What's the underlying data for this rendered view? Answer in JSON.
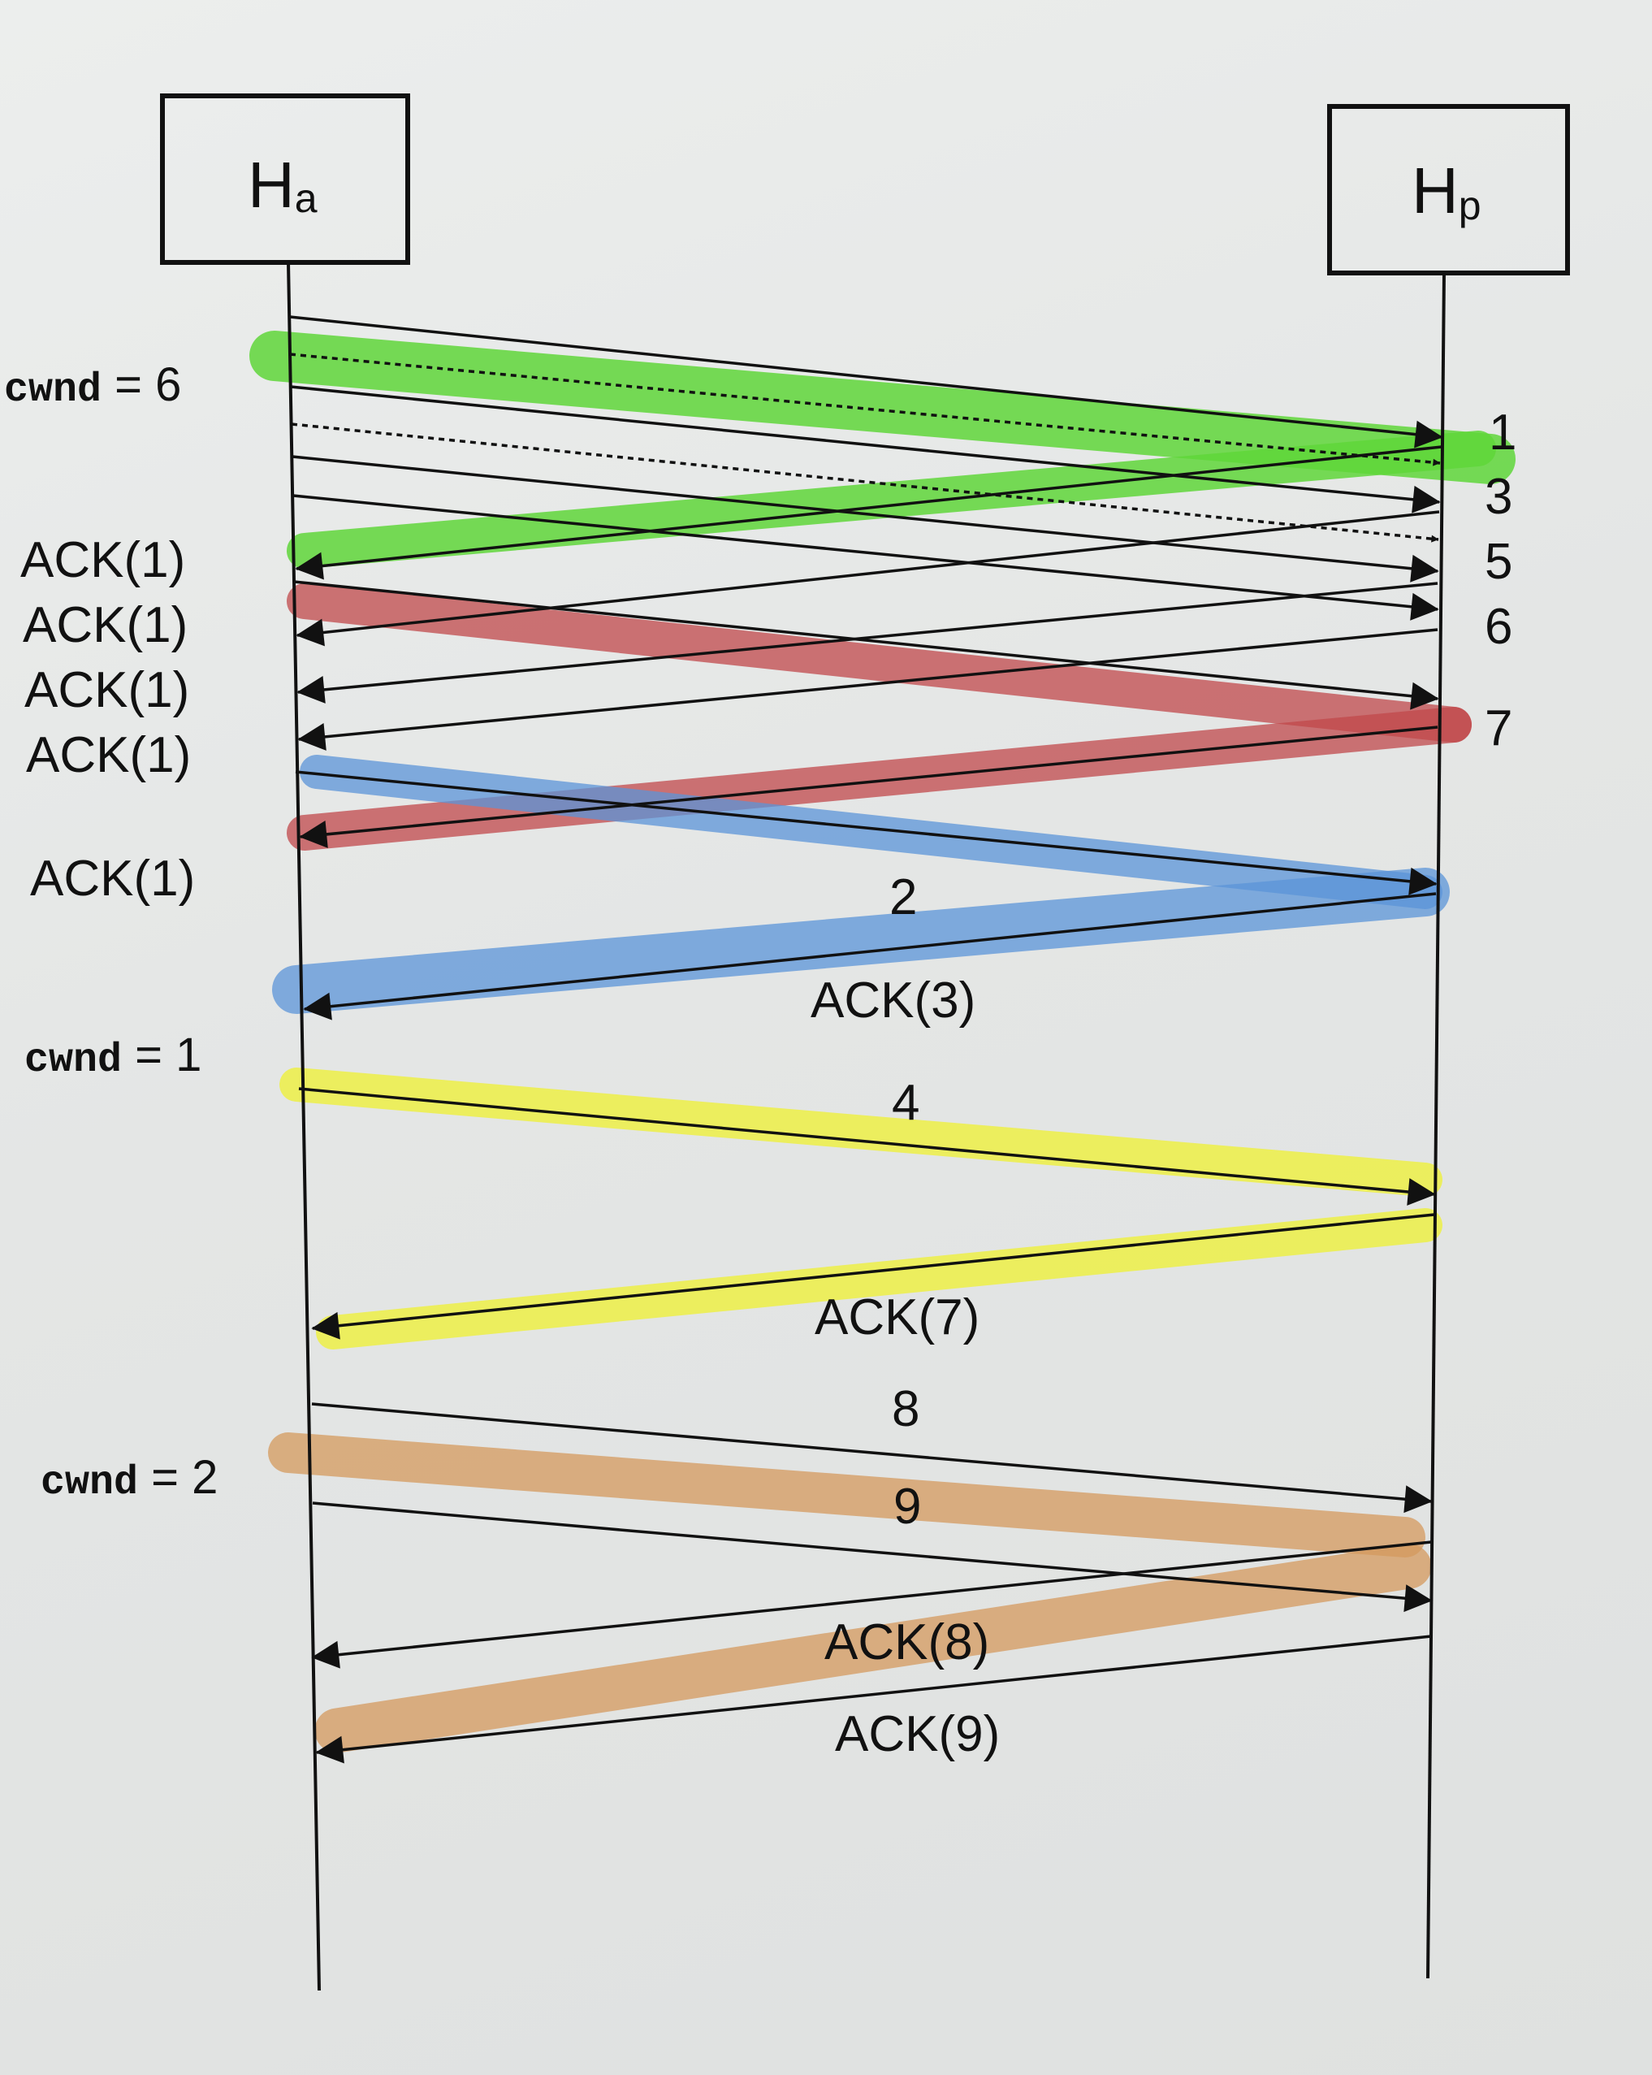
{
  "hosts": {
    "left": {
      "main": "H",
      "sub": "a"
    },
    "right": {
      "main": "H",
      "sub": "p"
    }
  },
  "cwnd_labels": [
    {
      "id": "cwnd-6",
      "mono": "cwnd",
      "rest": " = 6"
    },
    {
      "id": "cwnd-1",
      "mono": "cwnd",
      "rest": " = 1"
    },
    {
      "id": "cwnd-2",
      "mono": "cwnd",
      "rest": " = 2"
    }
  ],
  "segment_labels": [
    {
      "id": "seg-1",
      "text": "1"
    },
    {
      "id": "seg-3",
      "text": "3"
    },
    {
      "id": "seg-5",
      "text": "5"
    },
    {
      "id": "seg-6",
      "text": "6"
    },
    {
      "id": "seg-7",
      "text": "7"
    },
    {
      "id": "seg-2",
      "text": "2"
    },
    {
      "id": "seg-4",
      "text": "4"
    },
    {
      "id": "seg-8",
      "text": "8"
    },
    {
      "id": "seg-9",
      "text": "9"
    }
  ],
  "ack_labels": [
    {
      "id": "ack-1-a",
      "text": "ACK(1)"
    },
    {
      "id": "ack-1-b",
      "text": "ACK(1)"
    },
    {
      "id": "ack-1-c",
      "text": "ACK(1)"
    },
    {
      "id": "ack-1-d",
      "text": "ACK(1)"
    },
    {
      "id": "ack-1-e",
      "text": "ACK(1)"
    },
    {
      "id": "ack-3",
      "text": "ACK(3)"
    },
    {
      "id": "ack-7",
      "text": "ACK(7)"
    },
    {
      "id": "ack-8",
      "text": "ACK(8)"
    },
    {
      "id": "ack-9",
      "text": "ACK(9)"
    }
  ],
  "highlight_colors": {
    "green": "#5fd63a",
    "red": "#c0484b",
    "blue": "#5b94d8",
    "yellow": "#eef03c",
    "orange": "#d49a5e"
  }
}
